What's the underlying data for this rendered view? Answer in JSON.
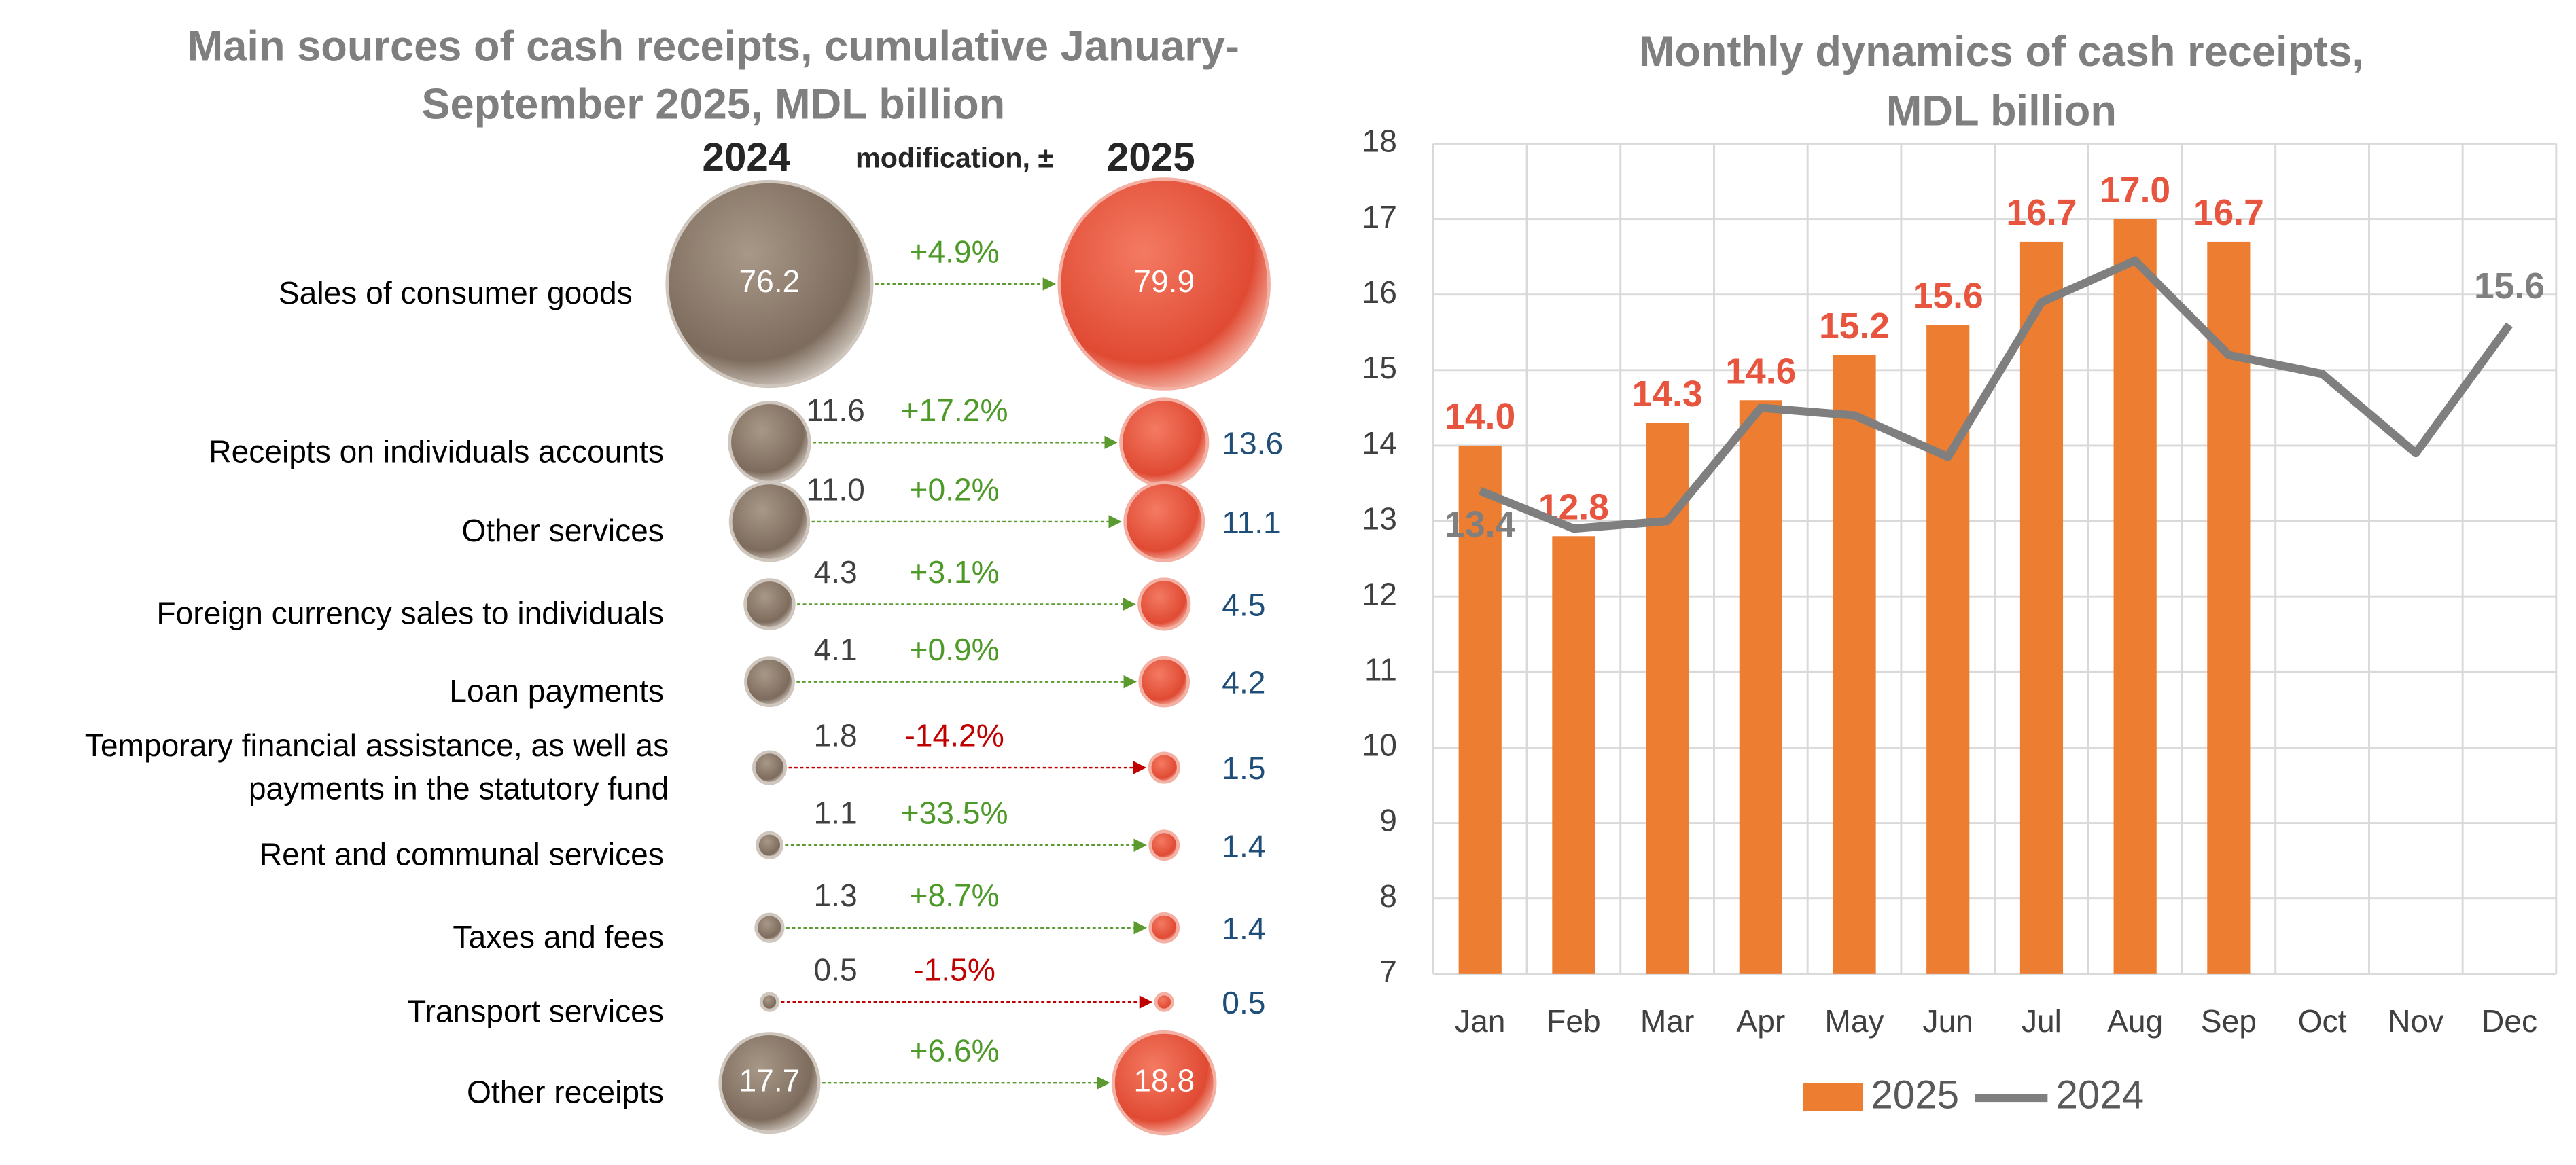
{
  "chart_data": [
    {
      "type": "bubble-compare",
      "title": [
        "Main sources of cash receipts, cumulative January-",
        "September 2025,  MDL billion"
      ],
      "change_header": "modification, ±",
      "categories": [
        "Sales of consumer goods",
        "Receipts on individuals accounts",
        "Other services",
        "Foreign currency sales to individuals",
        "Loan payments",
        [
          "Temporary financial assistance, as well as",
          "payments in the statutory fund"
        ],
        "Rent and communal services",
        "Taxes and fees",
        "Transport services",
        "Other receipts"
      ],
      "series": [
        {
          "name": "2024",
          "color": "#8c7b6b",
          "values": [
            76.2,
            11.6,
            11.0,
            4.3,
            4.1,
            1.8,
            1.1,
            1.3,
            0.5,
            17.7
          ],
          "value_labels": [
            "76.2",
            "11.6",
            "11.0",
            "4.3",
            "4.1",
            "1.8",
            "1.1",
            "1.3",
            "0.5",
            "17.7"
          ]
        },
        {
          "name": "2025",
          "color": "#e8553f",
          "values": [
            79.9,
            13.6,
            11.1,
            4.5,
            4.2,
            1.5,
            1.4,
            1.4,
            0.5,
            18.8
          ],
          "value_labels": [
            "79.9",
            "13.6",
            "11.1",
            "4.5",
            "4.2",
            "1.5",
            "1.4",
            "1.4",
            "0.5",
            "18.8"
          ]
        }
      ],
      "changes": [
        4.9,
        17.2,
        0.2,
        3.1,
        0.9,
        -14.2,
        33.5,
        8.7,
        -1.5,
        6.6
      ],
      "change_labels": [
        "+4.9%",
        "+17.2%",
        "+0.2%",
        "+3.1%",
        "+0.9%",
        "-14.2%",
        "+33.5%",
        "+8.7%",
        "-1.5%",
        "+6.6%"
      ]
    },
    {
      "type": "bar-line",
      "title": [
        "Monthly dynamics of cash receipts,",
        "MDL billion"
      ],
      "categories": [
        "Jan",
        "Feb",
        "Mar",
        "Apr",
        "May",
        "Jun",
        "Jul",
        "Aug",
        "Sep",
        "Oct",
        "Nov",
        "Dec"
      ],
      "series": [
        {
          "name": "2025",
          "type": "bar",
          "color": "#ed7d31",
          "values": [
            14.0,
            12.8,
            14.3,
            14.6,
            15.2,
            15.6,
            16.7,
            17.0,
            16.7,
            null,
            null,
            null
          ],
          "value_labels": [
            "14.0",
            "12.8",
            "14.3",
            "14.6",
            "15.2",
            "15.6",
            "16.7",
            "17.0",
            "16.7",
            null,
            null,
            null
          ]
        },
        {
          "name": "2024",
          "type": "line",
          "color": "#7f7f7f",
          "values": [
            13.4,
            12.9,
            13.0,
            14.5,
            14.4,
            13.85,
            15.9,
            16.45,
            15.2,
            14.95,
            13.9,
            15.6
          ],
          "value_labels": [
            "13.4",
            null,
            null,
            null,
            null,
            null,
            null,
            null,
            null,
            null,
            null,
            "15.6"
          ]
        }
      ],
      "ylim": [
        7,
        18
      ],
      "yticks": [
        7,
        8,
        9,
        10,
        11,
        12,
        13,
        14,
        15,
        16,
        17,
        18
      ],
      "grid": true,
      "legend": "bottom"
    }
  ]
}
